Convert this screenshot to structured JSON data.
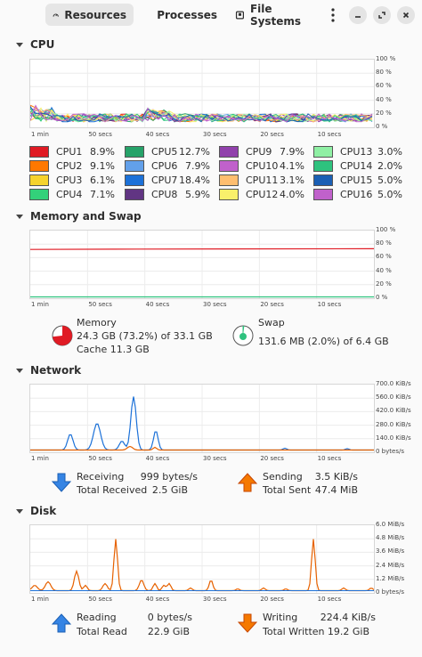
{
  "header": {
    "tabs": [
      {
        "label": "Resources",
        "active": true
      },
      {
        "label": "Processes",
        "active": false
      },
      {
        "label": "File Systems",
        "active": false
      }
    ]
  },
  "cpu": {
    "title": "CPU",
    "y_ticks": [
      "100 %",
      "80 %",
      "60 %",
      "40 %",
      "20 %",
      "0 %"
    ],
    "cores": [
      {
        "name": "CPU1",
        "value": "8.9%",
        "color": "#e01b24"
      },
      {
        "name": "CPU2",
        "value": "9.1%",
        "color": "#ff7800"
      },
      {
        "name": "CPU3",
        "value": "6.1%",
        "color": "#f6d32d"
      },
      {
        "name": "CPU4",
        "value": "7.1%",
        "color": "#33d17a"
      },
      {
        "name": "CPU5",
        "value": "12.7%",
        "color": "#26a269"
      },
      {
        "name": "CPU6",
        "value": "7.9%",
        "color": "#62a0ea"
      },
      {
        "name": "CPU7",
        "value": "18.4%",
        "color": "#1c71d8"
      },
      {
        "name": "CPU8",
        "value": "5.9%",
        "color": "#613583"
      },
      {
        "name": "CPU9",
        "value": "7.9%",
        "color": "#9141ac"
      },
      {
        "name": "CPU10",
        "value": "4.1%",
        "color": "#c061cb"
      },
      {
        "name": "CPU11",
        "value": "3.1%",
        "color": "#ffbe6f"
      },
      {
        "name": "CPU12",
        "value": "4.0%",
        "color": "#f9f06b"
      },
      {
        "name": "CPU13",
        "value": "3.0%",
        "color": "#8ff0a4"
      },
      {
        "name": "CPU14",
        "value": "2.0%",
        "color": "#2ec27e"
      },
      {
        "name": "CPU15",
        "value": "5.0%",
        "color": "#1a5fb4"
      },
      {
        "name": "CPU16",
        "value": "5.0%",
        "color": "#c061cb"
      }
    ]
  },
  "x_ticks": [
    "1 min",
    "50 secs",
    "40 secs",
    "30 secs",
    "20 secs",
    "10 secs"
  ],
  "memory": {
    "title": "Memory and Swap",
    "y_ticks": [
      "100 %",
      "80 %",
      "60 %",
      "40 %",
      "20 %",
      "0 %"
    ],
    "memory_label": "Memory",
    "memory_usage": "24.3 GB (73.2%) of 33.1 GB",
    "memory_fraction": 0.732,
    "memory_color": "#e01b24",
    "cache": "Cache 11.3 GB",
    "swap_label": "Swap",
    "swap_usage": "131.6 MB (2.0%) of 6.4 GB",
    "swap_fraction": 0.02,
    "swap_color": "#2ec27e"
  },
  "network": {
    "title": "Network",
    "y_ticks": [
      "700.0 KiB/s",
      "560.0 KiB/s",
      "420.0 KiB/s",
      "280.0 KiB/s",
      "140.0 KiB/s",
      "0 bytes/s"
    ],
    "receiving_label": "Receiving",
    "receiving_value": "999 bytes/s",
    "total_received_label": "Total Received",
    "total_received_value": "2.5 GiB",
    "sending_label": "Sending",
    "sending_value": "3.5 KiB/s",
    "total_sent_label": "Total Sent",
    "total_sent_value": "47.4 MiB",
    "receive_color": "#1c71d8",
    "send_color": "#e66100"
  },
  "disk": {
    "title": "Disk",
    "y_ticks": [
      "6.0 MiB/s",
      "4.8 MiB/s",
      "3.6 MiB/s",
      "2.4 MiB/s",
      "1.2 MiB/s",
      "0 bytes/s"
    ],
    "reading_label": "Reading",
    "reading_value": "0 bytes/s",
    "total_read_label": "Total Read",
    "total_read_value": "22.9 GiB",
    "writing_label": "Writing",
    "writing_value": "224.4 KiB/s",
    "total_written_label": "Total Written",
    "total_written_value": "19.2 GiB",
    "read_color": "#1c71d8",
    "write_color": "#e66100"
  }
}
